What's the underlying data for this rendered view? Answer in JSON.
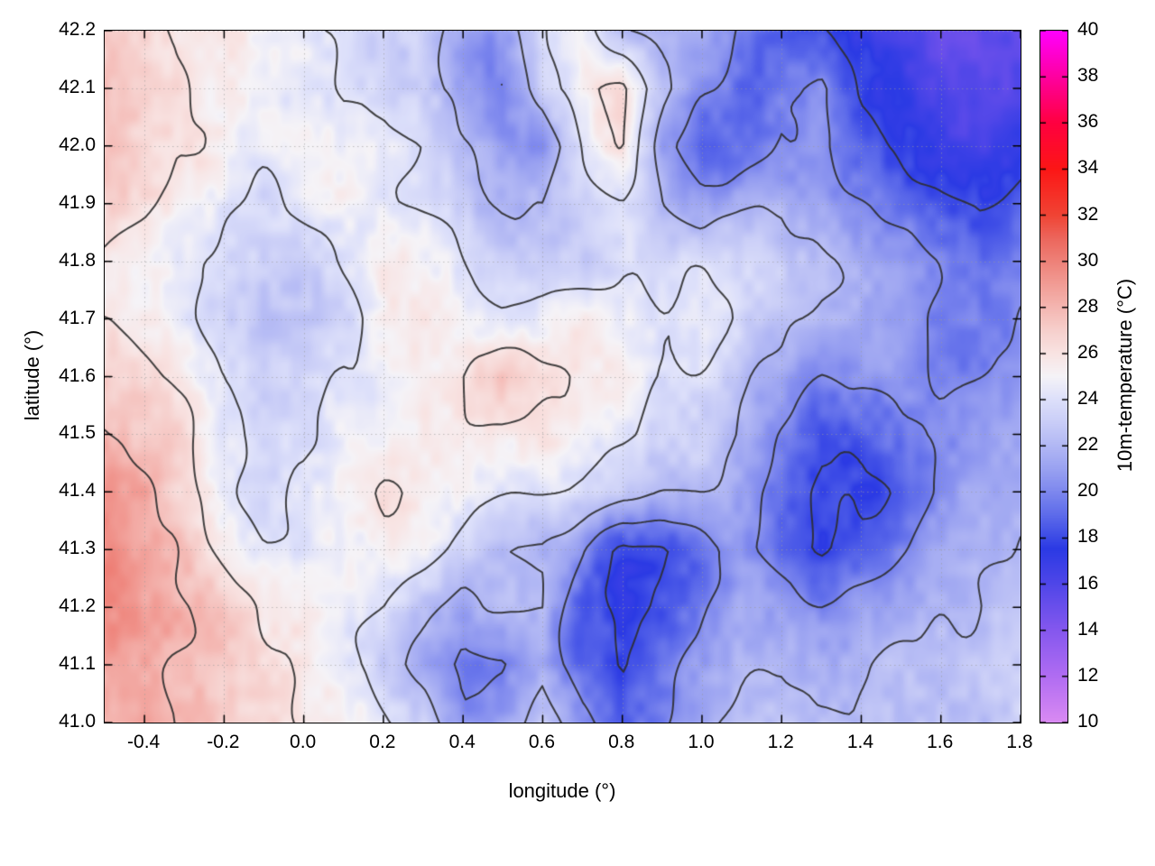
{
  "figure": {
    "background": "#ffffff",
    "border_color": "#000000",
    "grid_line_color": "#9a9a9a"
  },
  "chart_data": {
    "type": "heatmap",
    "title": "",
    "xlabel": "longitude (°)",
    "ylabel": "latitude (°)",
    "colorbar_label": "10m-temperature (°C)",
    "xlim": [
      -0.5,
      1.8
    ],
    "ylim": [
      41.0,
      42.2
    ],
    "clim": [
      10,
      40
    ],
    "grid_on": true,
    "legend_position": "colorbar-right",
    "x_ticks": [
      -0.4,
      -0.2,
      0.0,
      0.2,
      0.4,
      0.6,
      0.8,
      1.0,
      1.2,
      1.4,
      1.6,
      1.8
    ],
    "x_tick_labels": [
      "-0.4",
      "-0.2",
      "0.0",
      "0.2",
      "0.4",
      "0.6",
      "0.8",
      "1.0",
      "1.2",
      "1.4",
      "1.6",
      "1.8"
    ],
    "y_ticks": [
      41.0,
      41.1,
      41.2,
      41.3,
      41.4,
      41.5,
      41.6,
      41.7,
      41.8,
      41.9,
      42.0,
      42.1,
      42.2
    ],
    "y_tick_labels": [
      "41.0",
      "41.1",
      "41.2",
      "41.3",
      "41.4",
      "41.5",
      "41.6",
      "41.7",
      "41.8",
      "41.9",
      "42.0",
      "42.1",
      "42.2"
    ],
    "colorbar_ticks": [
      10,
      12,
      14,
      16,
      18,
      20,
      22,
      24,
      26,
      28,
      30,
      32,
      34,
      36,
      38,
      40
    ],
    "colorbar_tick_labels": [
      "10",
      "12",
      "14",
      "16",
      "18",
      "20",
      "22",
      "24",
      "26",
      "28",
      "30",
      "32",
      "34",
      "36",
      "38",
      "40"
    ],
    "contour_levels": [
      18,
      20,
      22,
      24,
      26,
      28
    ],
    "contour_color": "#2e2e2e",
    "colormap_stops": [
      [
        10,
        "#d98af2"
      ],
      [
        12,
        "#b06cf2"
      ],
      [
        14,
        "#8457ee"
      ],
      [
        16,
        "#4f46e8"
      ],
      [
        17.5,
        "#2b3ae4"
      ],
      [
        19,
        "#5e6cea"
      ],
      [
        20,
        "#7e88ee"
      ],
      [
        21,
        "#9aa2f1"
      ],
      [
        22,
        "#b2b8f4"
      ],
      [
        23,
        "#c9cdf7"
      ],
      [
        24,
        "#dde0fa"
      ],
      [
        25,
        "#f5f3f7"
      ],
      [
        26,
        "#f8e3e2"
      ],
      [
        27,
        "#f6cfcc"
      ],
      [
        28,
        "#f4b6b1"
      ],
      [
        29,
        "#f19c95"
      ],
      [
        30,
        "#ee8178"
      ],
      [
        31,
        "#ec665c"
      ],
      [
        32,
        "#f04434"
      ],
      [
        34,
        "#fc1616"
      ],
      [
        36,
        "#ff0040"
      ],
      [
        38,
        "#fe00a0"
      ],
      [
        40,
        "#ff00ff"
      ]
    ],
    "grid_lon": [
      -0.5,
      -0.4,
      -0.3,
      -0.2,
      -0.1,
      0.0,
      0.1,
      0.2,
      0.3,
      0.4,
      0.5,
      0.6,
      0.7,
      0.8,
      0.9,
      1.0,
      1.1,
      1.2,
      1.3,
      1.4,
      1.5,
      1.6,
      1.7,
      1.8
    ],
    "grid_lat": [
      42.2,
      42.1,
      42.0,
      41.9,
      41.8,
      41.7,
      41.6,
      41.5,
      41.4,
      41.3,
      41.2,
      41.1,
      41.0
    ],
    "grid_values_north_to_south": [
      [
        27,
        26.5,
        26,
        25.5,
        25,
        24.5,
        24,
        23.5,
        23.5,
        22,
        21,
        24,
        25,
        22,
        21,
        21,
        19,
        18,
        17.5,
        17,
        16.5,
        16,
        16,
        15.5
      ],
      [
        27.5,
        27,
        26,
        25.5,
        25,
        24.5,
        24,
        24,
        23,
        21.5,
        20.5,
        23,
        25.5,
        26,
        22,
        20,
        18.5,
        19,
        20,
        18,
        17,
        16.5,
        16,
        16
      ],
      [
        27,
        26.5,
        26,
        25,
        24.5,
        24.5,
        24,
        24.5,
        24,
        22.5,
        21,
        20,
        24,
        26,
        21,
        18,
        19,
        21,
        20.5,
        19,
        18,
        17.5,
        17,
        17.5
      ],
      [
        26.5,
        26,
        25,
        24,
        23.5,
        24,
        24.5,
        24,
        23.5,
        23,
        22,
        21.5,
        22.5,
        23.5,
        22,
        21,
        22,
        22.5,
        21.5,
        20.5,
        19.5,
        19,
        18.5,
        19
      ],
      [
        26,
        25,
        24,
        23.5,
        23,
        23.5,
        24.5,
        25,
        24.5,
        24,
        23.5,
        23,
        23,
        24,
        24,
        23.5,
        23,
        23,
        22,
        21,
        20.5,
        20,
        19.5,
        20
      ],
      [
        26.5,
        25.5,
        24.5,
        23,
        22.5,
        23,
        24,
        25,
        25.5,
        25,
        24.5,
        25,
        25.5,
        25,
        24.5,
        24,
        23,
        22.5,
        21.5,
        21,
        20.5,
        20,
        20,
        20.5
      ],
      [
        27,
        26,
        25,
        23.5,
        23,
        23.5,
        24.5,
        25,
        25.5,
        26,
        27,
        26,
        25,
        25.5,
        24.5,
        23.5,
        22,
        21,
        20,
        20,
        20.5,
        20,
        20.5,
        21
      ],
      [
        28,
        27,
        26,
        24,
        23.5,
        24,
        25,
        25.5,
        26,
        26,
        25.5,
        25,
        24.5,
        24.5,
        24,
        23,
        21.5,
        20,
        18.5,
        18.5,
        19.5,
        20.5,
        21,
        21.5
      ],
      [
        29,
        28,
        26.5,
        25,
        24,
        24.5,
        25.5,
        26,
        25.5,
        25,
        24.5,
        24,
        23.5,
        22.5,
        22,
        21.5,
        20.5,
        19.5,
        18,
        17.5,
        18.5,
        20,
        21,
        21.5
      ],
      [
        29.5,
        28.5,
        27.5,
        26,
        25,
        24.5,
        25,
        25,
        24.5,
        23.5,
        22.5,
        22,
        20,
        17.5,
        17.5,
        18.5,
        20,
        19,
        18,
        18.5,
        19.5,
        20.5,
        21.5,
        22
      ],
      [
        29.5,
        29,
        28,
        27,
        26,
        25.5,
        25,
        24.5,
        23,
        21,
        22,
        22.5,
        19,
        17.5,
        18,
        19.5,
        21,
        20.5,
        20,
        20.5,
        21,
        21.5,
        22,
        22.5
      ],
      [
        29,
        28.5,
        28,
        27.5,
        26.5,
        25.5,
        24.5,
        23.5,
        22,
        19,
        19.5,
        22,
        19,
        17.5,
        19,
        20.5,
        21.5,
        22,
        21.5,
        21.5,
        22,
        22.5,
        23,
        23
      ],
      [
        28.5,
        28,
        27.5,
        27,
        26.5,
        25.5,
        24.5,
        24,
        23,
        20.5,
        21,
        22.5,
        20,
        18.5,
        20,
        21.5,
        22,
        22.5,
        22.5,
        22.5,
        22.5,
        23,
        23,
        23.5
      ]
    ]
  }
}
